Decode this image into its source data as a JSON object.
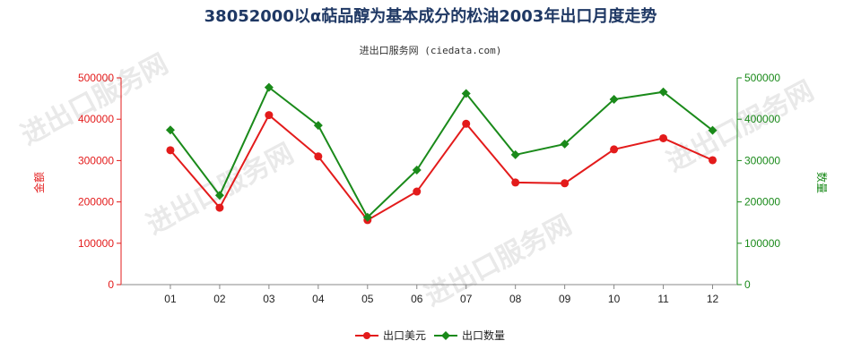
{
  "chart_data": {
    "type": "line",
    "title": "38052000以α萜品醇为基本成分的松油2003年出口月度走势",
    "subtitle": "进出口服务网 (ciedata.com)",
    "categories": [
      "01",
      "02",
      "03",
      "04",
      "05",
      "06",
      "07",
      "08",
      "09",
      "10",
      "11",
      "12"
    ],
    "left_axis": {
      "label": "金额",
      "ylim": [
        0,
        500000
      ],
      "ticks": [
        "0",
        "100000",
        "200000",
        "300000",
        "400000",
        "500000"
      ],
      "color": "#e31b1b"
    },
    "right_axis": {
      "label": "数量",
      "ylim": [
        0,
        500000
      ],
      "ticks": [
        "0",
        "100000",
        "200000",
        "300000",
        "400000",
        "500000"
      ],
      "color": "#1a8a1a"
    },
    "series": [
      {
        "name": "出口美元",
        "axis": "left",
        "color": "#e31b1b",
        "marker": "circle",
        "values": [
          325000,
          186000,
          410000,
          310000,
          156000,
          225000,
          389000,
          247000,
          245000,
          327000,
          354000,
          301000
        ]
      },
      {
        "name": "出口数量",
        "axis": "right",
        "color": "#1a8a1a",
        "marker": "diamond",
        "values": [
          374000,
          216000,
          477000,
          385000,
          163000,
          277000,
          462000,
          314000,
          340000,
          448000,
          466000,
          373000
        ]
      }
    ],
    "grid": false,
    "legend_position": "bottom",
    "watermark": "进出口服务网"
  }
}
